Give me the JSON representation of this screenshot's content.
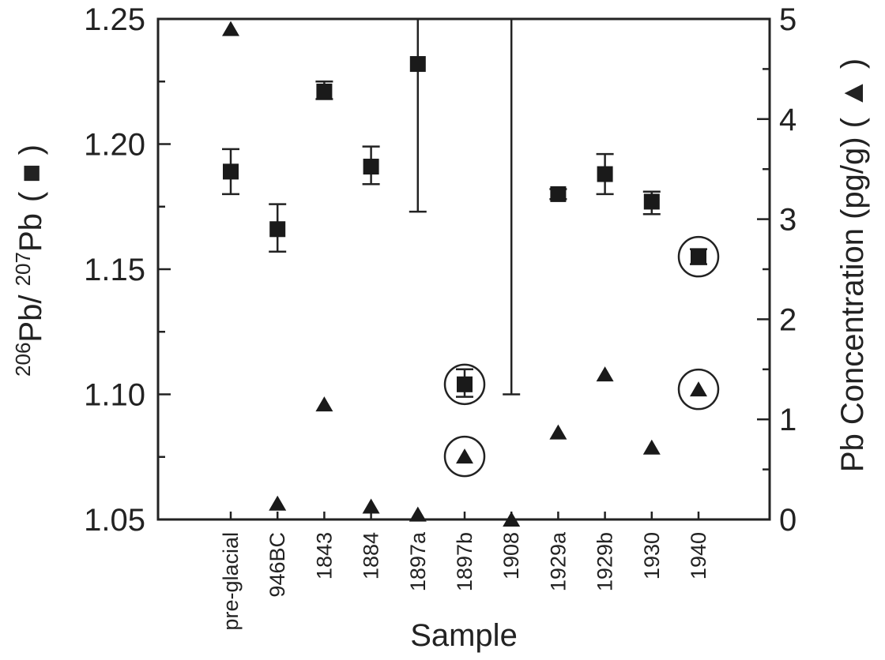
{
  "chart_data": {
    "type": "scatter",
    "xlabel": "Sample",
    "ylabel_left_prefix": "206",
    "ylabel_left_main": "Pb/ ",
    "ylabel_left_sup2": "207",
    "ylabel_left_tail": "Pb",
    "ylabel_left_marker": "( ■ )",
    "ylabel_right": "Pb Concentration (pg/g) ( ▲ )",
    "categories": [
      "pre-glacial",
      "946BC",
      "1843",
      "1884",
      "1897a",
      "1897b",
      "1908",
      "1929a",
      "1929b",
      "1930",
      "1940"
    ],
    "y_left": {
      "ylim": [
        1.05,
        1.25
      ],
      "ticks": [
        "1.05",
        "1.10",
        "1.15",
        "1.20",
        "1.25"
      ]
    },
    "y_right": {
      "ylim": [
        0,
        5
      ],
      "ticks": [
        "0",
        "1",
        "2",
        "3",
        "4",
        "5"
      ]
    },
    "series": [
      {
        "marker": "square",
        "axis": "left",
        "values": [
          1.189,
          1.166,
          1.221,
          1.191,
          1.232,
          1.104,
          null,
          1.18,
          1.188,
          1.177,
          1.155
        ],
        "err_low": [
          1.18,
          1.157,
          1.218,
          1.184,
          1.173,
          1.099,
          null,
          1.178,
          1.18,
          1.172,
          1.152
        ],
        "err_high": [
          1.198,
          1.176,
          1.225,
          1.199,
          1.25,
          1.11,
          null,
          1.182,
          1.196,
          1.181,
          1.158
        ],
        "circled": [
          "1897b",
          "1940"
        ]
      },
      {
        "marker": "triangle",
        "axis": "right",
        "values": [
          4.9,
          0.16,
          1.15,
          0.13,
          0.05,
          0.63,
          0.0,
          0.87,
          1.45,
          0.72,
          1.3
        ],
        "err_low": [
          null,
          null,
          null,
          null,
          null,
          null,
          0.0,
          null,
          null,
          null,
          null
        ],
        "err_high": [
          null,
          null,
          null,
          null,
          null,
          null,
          1.25,
          null,
          null,
          null,
          null
        ],
        "vertical_line_to": [
          null,
          null,
          null,
          null,
          null,
          null,
          5.0,
          null,
          null,
          null,
          null
        ],
        "circled": [
          "1897b",
          "1940"
        ]
      }
    ]
  }
}
